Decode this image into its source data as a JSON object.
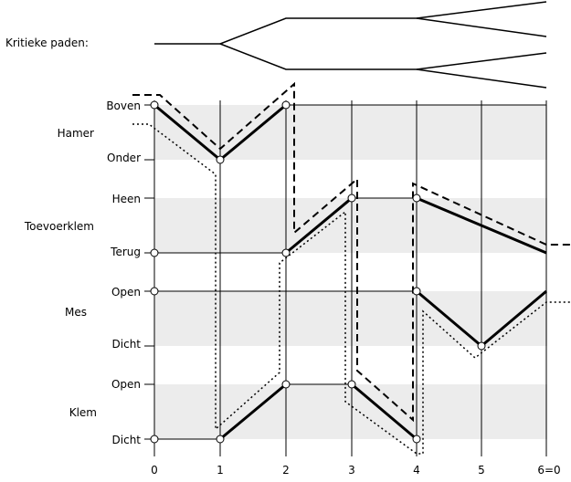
{
  "critical_paths_label": "Kritieke paden:",
  "components": [
    {
      "name": "Hamer",
      "states": [
        "Boven",
        "Onder"
      ]
    },
    {
      "name": "Toevoerklem",
      "states": [
        "Heen",
        "Terug"
      ]
    },
    {
      "name": "Mes",
      "states": [
        "Open",
        "Dicht"
      ]
    },
    {
      "name": "Klem",
      "states": [
        "Open",
        "Dicht"
      ]
    }
  ],
  "step_labels": [
    "0",
    "1",
    "2",
    "3",
    "4",
    "5",
    "6=0"
  ],
  "colors": {
    "band": "#ececec",
    "line": "#000000"
  }
}
